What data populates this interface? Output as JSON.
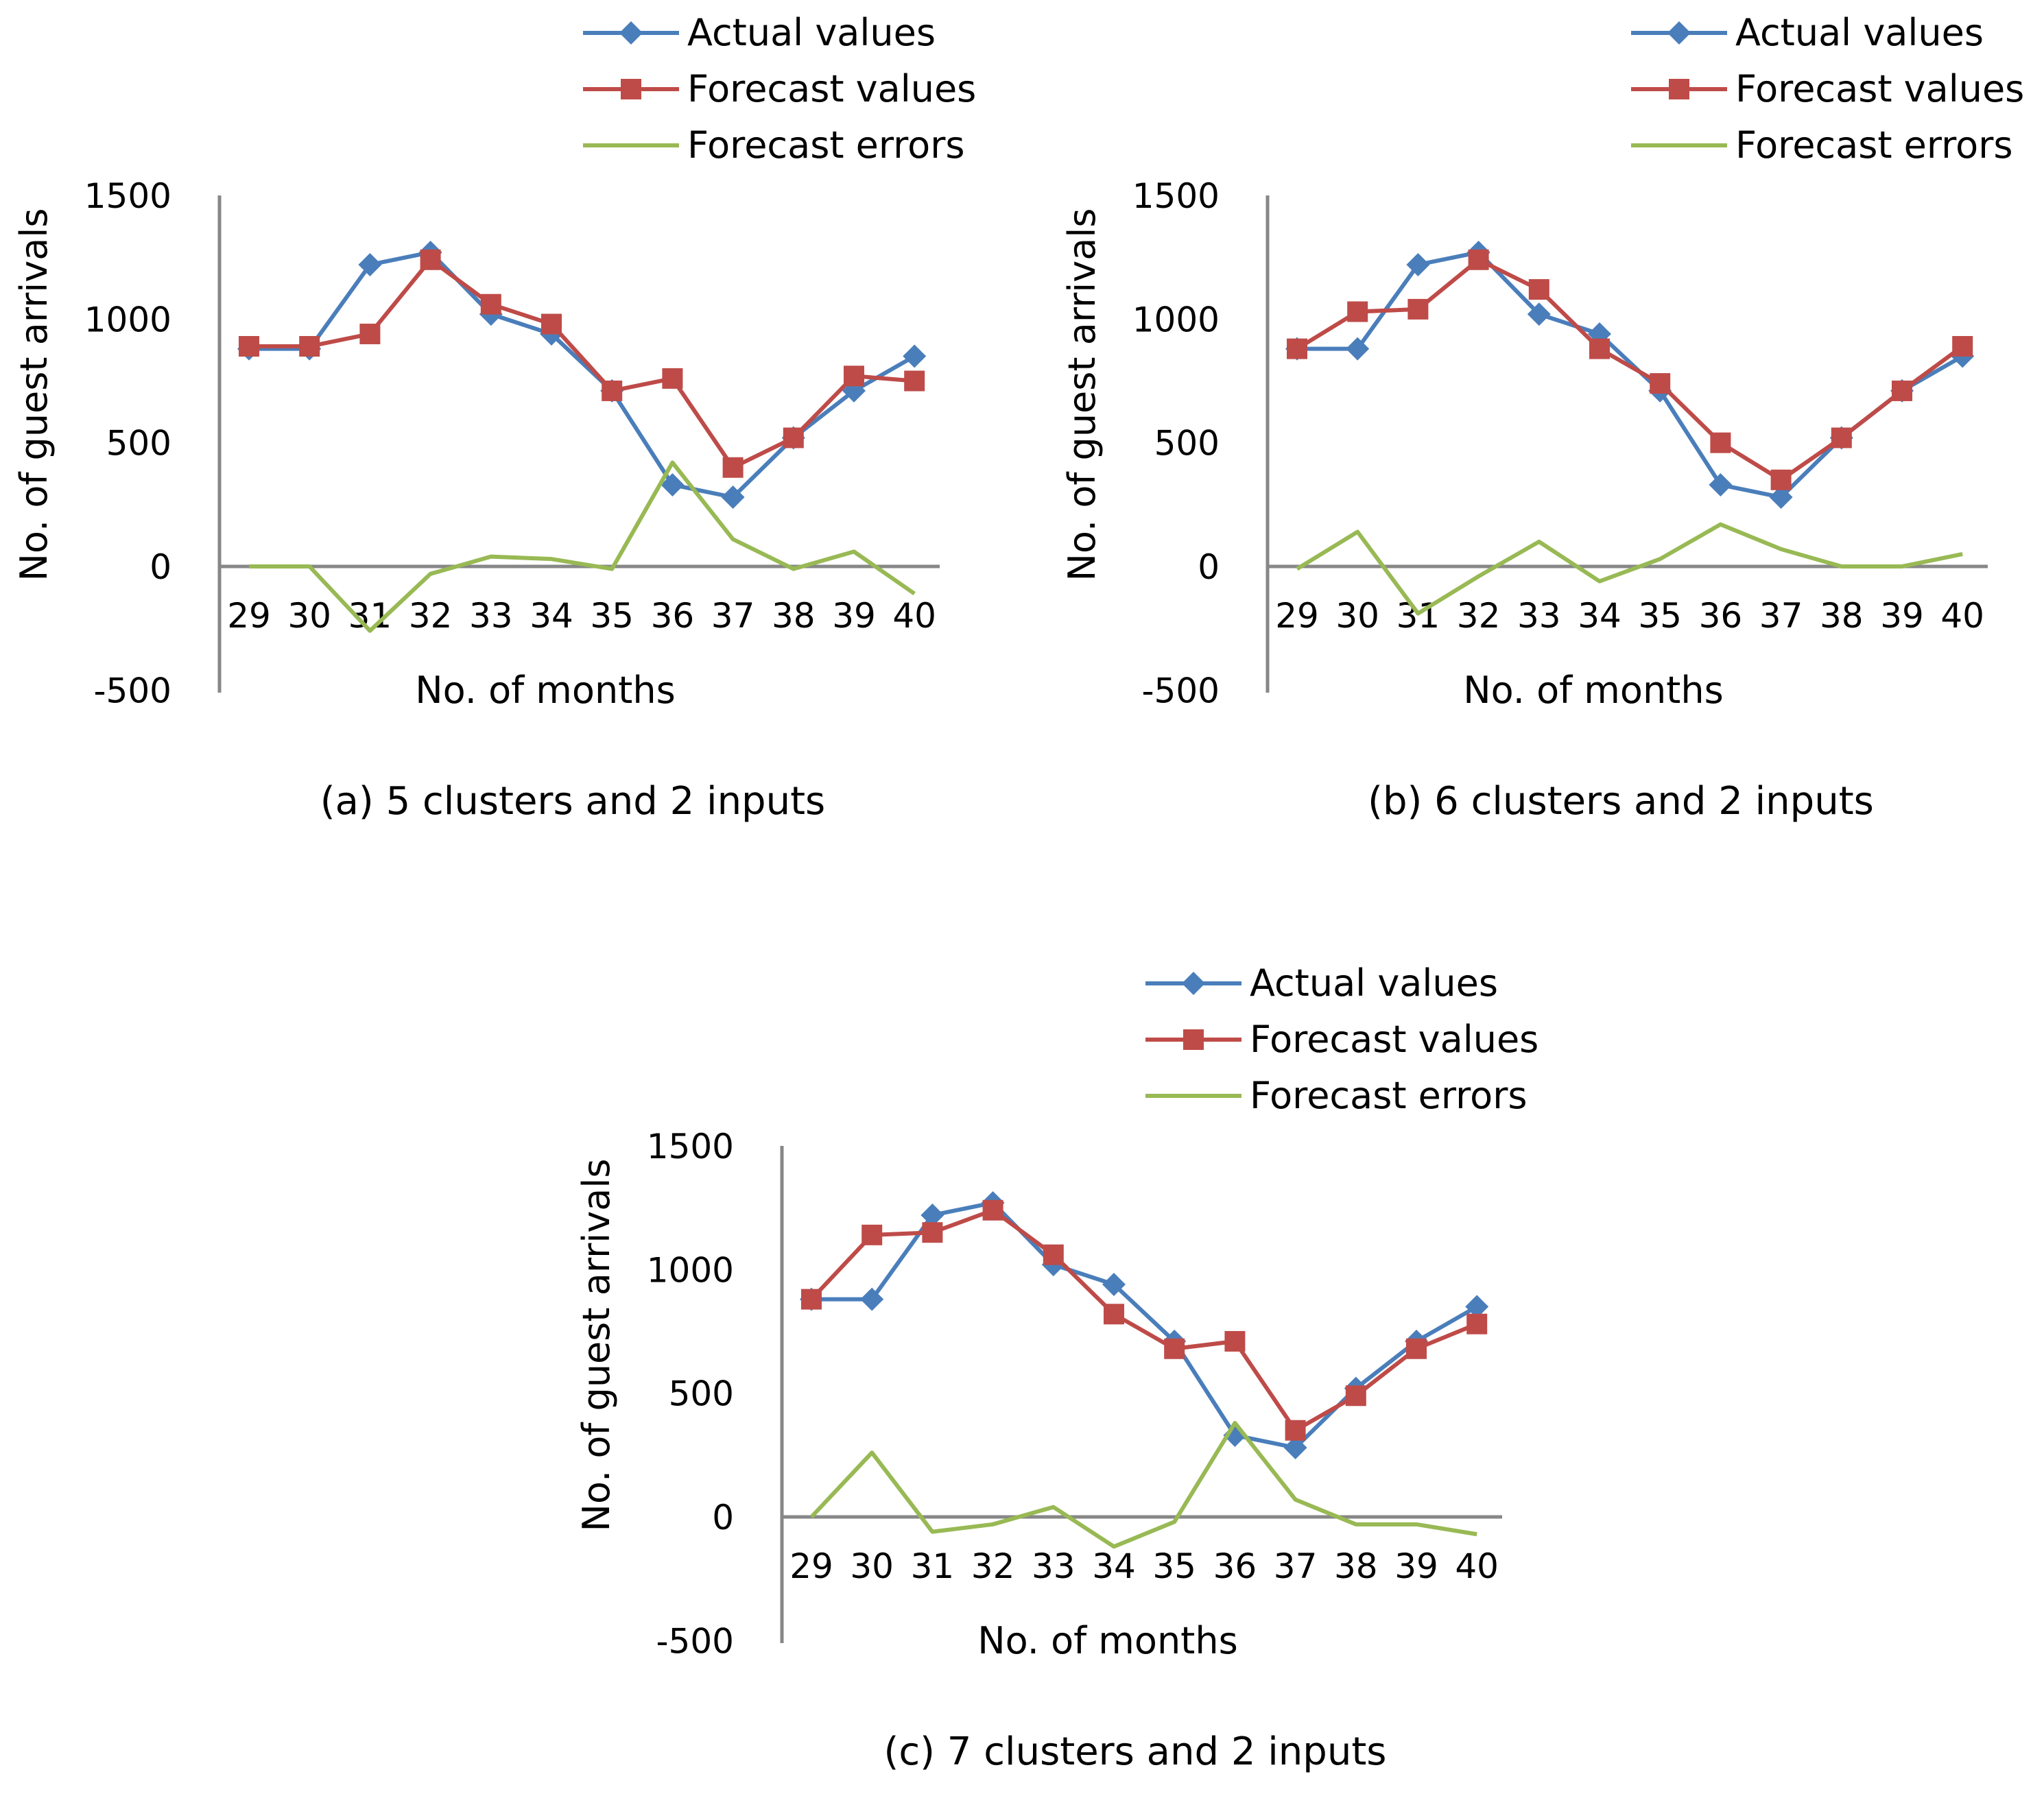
{
  "series_style": {
    "actual": {
      "name": "Actual values",
      "color": "#4A7EBB",
      "marker": "diamond"
    },
    "forecast": {
      "name": "Forecast values",
      "color": "#BE4B48",
      "marker": "square"
    },
    "error": {
      "name": "Forecast errors",
      "color": "#98B954",
      "marker": "none"
    }
  },
  "chart_data": [
    {
      "type": "line",
      "caption": "(a) 5 clusters and 2 inputs",
      "xlabel": "No. of months",
      "ylabel": "No. of guest arrivals",
      "x": [
        "29",
        "30",
        "31",
        "32",
        "33",
        "34",
        "35",
        "36",
        "37",
        "38",
        "39",
        "40"
      ],
      "y_ticks": [
        "1500",
        "1000",
        "500",
        "0",
        "-500"
      ],
      "ylim": [
        -500,
        1500
      ],
      "legend": "top",
      "series": [
        {
          "name": "Actual values",
          "values": [
            880,
            880,
            1220,
            1270,
            1020,
            940,
            710,
            330,
            280,
            520,
            710,
            850
          ]
        },
        {
          "name": "Forecast values",
          "values": [
            890,
            890,
            940,
            1240,
            1060,
            980,
            710,
            760,
            400,
            520,
            770,
            750
          ]
        },
        {
          "name": "Forecast errors",
          "values": [
            0,
            0,
            -260,
            -30,
            40,
            30,
            -10,
            420,
            110,
            -10,
            60,
            -110
          ]
        }
      ]
    },
    {
      "type": "line",
      "caption": "(b) 6 clusters and 2 inputs",
      "xlabel": "No. of months",
      "ylabel": "No. of guest arrivals",
      "x": [
        "29",
        "30",
        "31",
        "32",
        "33",
        "34",
        "35",
        "36",
        "37",
        "38",
        "39",
        "40"
      ],
      "y_ticks": [
        "1500",
        "1000",
        "500",
        "0",
        "-500"
      ],
      "ylim": [
        -500,
        1500
      ],
      "legend": "top",
      "series": [
        {
          "name": "Actual values",
          "values": [
            880,
            880,
            1220,
            1270,
            1020,
            940,
            710,
            330,
            280,
            520,
            710,
            850
          ]
        },
        {
          "name": "Forecast values",
          "values": [
            880,
            1030,
            1040,
            1240,
            1120,
            880,
            740,
            500,
            350,
            520,
            710,
            890
          ]
        },
        {
          "name": "Forecast errors",
          "values": [
            -10,
            140,
            -190,
            -40,
            100,
            -60,
            30,
            170,
            70,
            0,
            0,
            50
          ]
        }
      ]
    },
    {
      "type": "line",
      "caption": "(c) 7 clusters and 2 inputs",
      "xlabel": "No. of months",
      "ylabel": "No. of guest arrivals",
      "x": [
        "29",
        "30",
        "31",
        "32",
        "33",
        "34",
        "35",
        "36",
        "37",
        "38",
        "39",
        "40"
      ],
      "y_ticks": [
        "1500",
        "1000",
        "500",
        "0",
        "-500"
      ],
      "ylim": [
        -500,
        1500
      ],
      "legend": "top",
      "series": [
        {
          "name": "Actual values",
          "values": [
            880,
            880,
            1220,
            1270,
            1020,
            940,
            710,
            330,
            280,
            520,
            710,
            850
          ]
        },
        {
          "name": "Forecast values",
          "values": [
            880,
            1140,
            1150,
            1240,
            1060,
            820,
            680,
            710,
            350,
            490,
            680,
            780
          ]
        },
        {
          "name": "Forecast errors",
          "values": [
            0,
            260,
            -60,
            -30,
            40,
            -120,
            -20,
            380,
            70,
            -30,
            -30,
            -70
          ]
        }
      ]
    }
  ]
}
